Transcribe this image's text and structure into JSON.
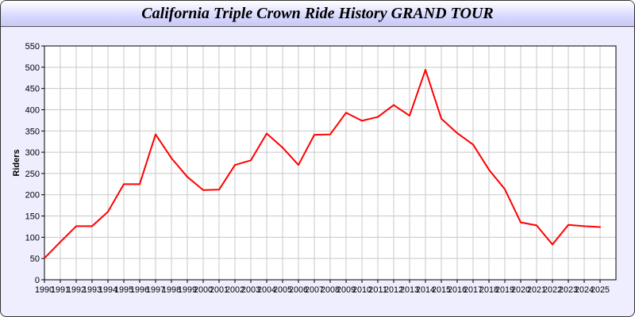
{
  "chart_data": {
    "type": "line",
    "title": "California Triple Crown Ride History GRAND TOUR",
    "xlabel": "",
    "ylabel": "Riders",
    "ylim": [
      0,
      550
    ],
    "yticks": [
      0,
      50,
      100,
      150,
      200,
      250,
      300,
      350,
      400,
      450,
      500,
      550
    ],
    "grid": true,
    "line_color": "#ff0000",
    "x": [
      1990,
      1991,
      1992,
      1993,
      1994,
      1995,
      1996,
      1997,
      1998,
      1999,
      2000,
      2001,
      2002,
      2003,
      2004,
      2005,
      2006,
      2007,
      2008,
      2009,
      2010,
      2011,
      2012,
      2013,
      2014,
      2015,
      2016,
      2017,
      2018,
      2019,
      2020,
      2021,
      2022,
      2023,
      2024,
      2025
    ],
    "series": [
      {
        "values": [
          51,
          89,
          126,
          126,
          160,
          225,
          225,
          342,
          286,
          242,
          211,
          212,
          270,
          281,
          344,
          311,
          270,
          341,
          342,
          393,
          374,
          383,
          411,
          386,
          494,
          379,
          345,
          318,
          259,
          213,
          135,
          128,
          83,
          129,
          126,
          124
        ]
      }
    ]
  }
}
